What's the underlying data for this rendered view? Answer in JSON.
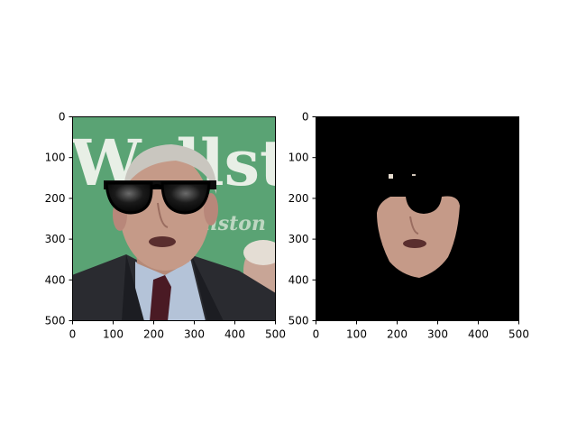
{
  "chart_data": [
    {
      "type": "image",
      "title": "",
      "xlabel": "",
      "ylabel": "",
      "xlim": [
        0,
        500
      ],
      "ylim": [
        500,
        0
      ],
      "xticks": [
        0,
        100,
        200,
        300,
        400,
        500
      ],
      "yticks": [
        0,
        100,
        200,
        300,
        400,
        500
      ],
      "content": "photo of a man wearing black sunglasses over a green banner background",
      "banner_text": "Wellstone",
      "colors": {
        "background": "#5aa374",
        "banner_text": "#e8efe6",
        "suit": "#2a2b30",
        "shirt": "#b4c3d8",
        "tie": "#4a1a24",
        "skin": "#c59a88",
        "hair": "#c9c6bf",
        "glasses": "#0d0d0d"
      }
    },
    {
      "type": "image",
      "title": "",
      "xlabel": "",
      "ylabel": "",
      "xlim": [
        0,
        500
      ],
      "ylim": [
        500,
        0
      ],
      "xticks": [
        0,
        100,
        200,
        300,
        400,
        500
      ],
      "yticks": [
        0,
        100,
        200,
        300,
        400,
        500
      ],
      "content": "face segmentation mask on a black background with the sunglasses region removed",
      "colors": {
        "background": "#000000",
        "skin": "#c59a88"
      }
    }
  ]
}
